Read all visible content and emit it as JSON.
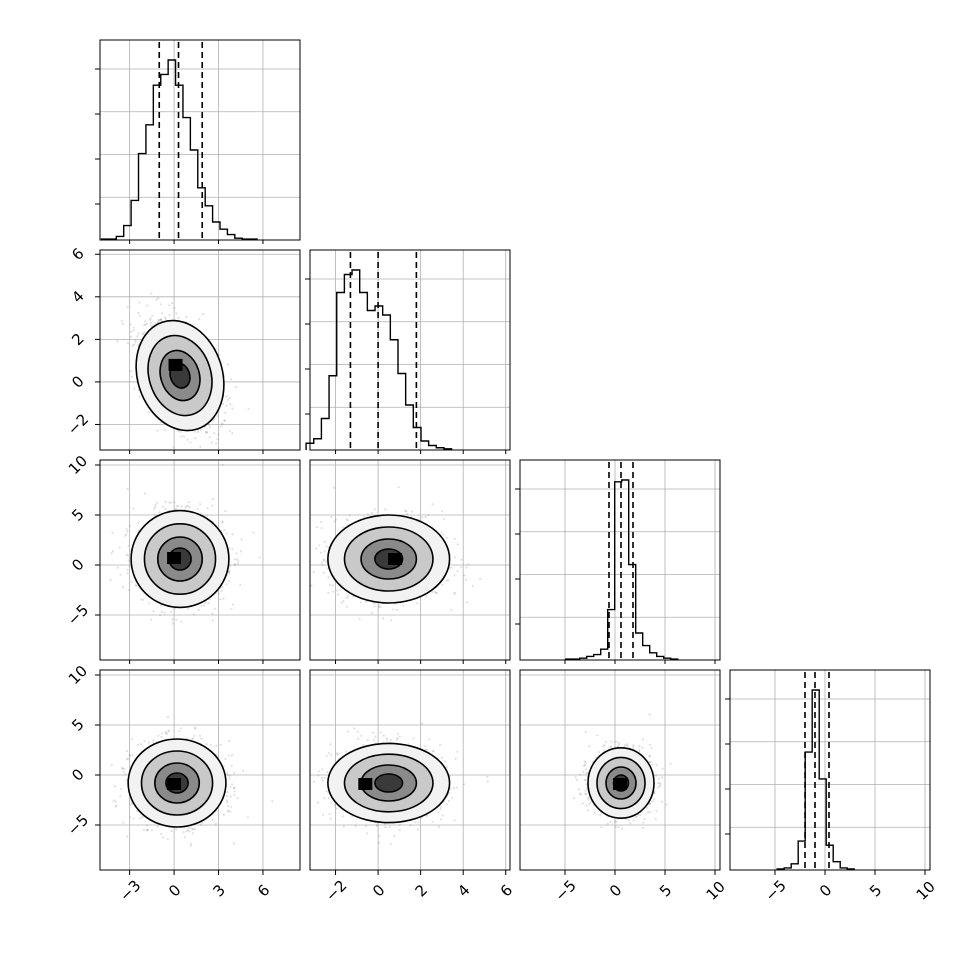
{
  "chart_data": {
    "type": "corner",
    "title": "",
    "grid": true,
    "parameters": [
      {
        "label": "",
        "range": [
          -5,
          8.5
        ],
        "ticks": [
          -3,
          0,
          3,
          6
        ],
        "tick_labels": [
          "−3",
          "0",
          "3",
          "6"
        ]
      },
      {
        "label": "",
        "range": [
          -3.2,
          6.2
        ],
        "ticks": [
          -2,
          0,
          2,
          4,
          6
        ],
        "tick_labels": [
          "−2",
          "0",
          "2",
          "4",
          "6"
        ]
      },
      {
        "label": "",
        "range": [
          -9.5,
          10.5
        ],
        "ticks": [
          -5,
          0,
          5,
          10
        ],
        "tick_labels": [
          "−5",
          "0",
          "5",
          "10"
        ]
      },
      {
        "label": "",
        "range": [
          -9.5,
          10.5
        ],
        "ticks": [
          -5,
          0,
          5,
          10
        ],
        "tick_labels": [
          "−5",
          "0",
          "5",
          "10"
        ]
      }
    ],
    "histograms": [
      {
        "param": 0,
        "bin_width": 0.5,
        "counts": [
          0.5,
          0.5,
          2,
          8,
          22,
          48,
          64,
          86,
          92,
          100,
          86,
          68,
          50,
          29,
          19,
          10,
          6,
          3,
          1,
          0.5,
          0.5
        ],
        "quantiles": [
          -1.0,
          0.3,
          1.9
        ]
      },
      {
        "param": 1,
        "bin_width": 0.36,
        "counts": [
          3,
          5,
          14,
          33,
          70,
          78,
          80,
          70,
          62,
          64,
          60,
          49,
          34,
          20,
          10,
          4,
          2,
          1,
          0.5
        ],
        "quantiles": [
          -1.3,
          0.0,
          1.8
        ]
      },
      {
        "param": 2,
        "bin_width": 0.7,
        "counts": [
          0.5,
          0.5,
          1,
          2,
          3,
          6,
          28,
          99,
          100,
          53,
          15,
          8,
          4,
          2,
          1,
          0.5
        ],
        "quantiles": [
          -0.6,
          0.6,
          1.8
        ]
      },
      {
        "param": 3,
        "bin_width": 0.7,
        "counts": [
          0.5,
          1,
          3,
          14,
          57,
          87,
          44,
          12,
          4,
          1,
          0.5
        ],
        "quantiles": [
          -2.0,
          -1.0,
          0.4
        ]
      }
    ],
    "scatter_panels": [
      {
        "x": 0,
        "y": 1,
        "mean": [
          0.4,
          0.3
        ],
        "sd": [
          1.3,
          1.2
        ],
        "corr": -0.45,
        "density_peak": [
          0.1,
          0.8
        ]
      },
      {
        "x": 0,
        "y": 2,
        "mean": [
          0.4,
          0.6
        ],
        "sd": [
          1.5,
          2.2
        ],
        "corr": 0.0,
        "density_peak": [
          0.0,
          0.7
        ]
      },
      {
        "x": 1,
        "y": 2,
        "mean": [
          0.5,
          0.6
        ],
        "sd": [
          1.3,
          2.0
        ],
        "corr": 0.0,
        "density_peak": [
          0.8,
          0.6
        ]
      },
      {
        "x": 0,
        "y": 3,
        "mean": [
          0.2,
          -0.8
        ],
        "sd": [
          1.5,
          2.0
        ],
        "corr": 0.0,
        "density_peak": [
          0.0,
          -0.9
        ]
      },
      {
        "x": 1,
        "y": 3,
        "mean": [
          0.5,
          -0.8
        ],
        "sd": [
          1.3,
          1.8
        ],
        "corr": 0.0,
        "density_peak": [
          -0.6,
          -0.9
        ]
      },
      {
        "x": 2,
        "y": 3,
        "mean": [
          0.6,
          -0.8
        ],
        "sd": [
          1.5,
          1.6
        ],
        "corr": 0.0,
        "density_peak": [
          0.5,
          -0.9
        ]
      }
    ]
  }
}
